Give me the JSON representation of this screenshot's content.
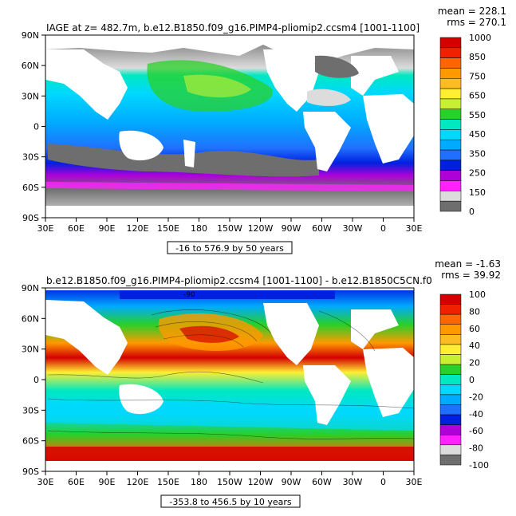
{
  "chart_data": [
    {
      "type": "heatmap",
      "title": "IAGE at z= 482.7m, b.e12.B1850.f09_g16.PIMP4-pliomip2.ccsm4 [1001-1100]",
      "stats": [
        "mean = 228.1",
        "rms = 270.1"
      ],
      "range_label": "-16 to 576.9 by 50 years",
      "x_ticks": [
        "30E",
        "60E",
        "90E",
        "120E",
        "150E",
        "180",
        "150W",
        "120W",
        "90W",
        "60W",
        "30W",
        "0",
        "30E"
      ],
      "y_ticks": [
        "90N",
        "60N",
        "30N",
        "0",
        "30S",
        "60S",
        "90S"
      ],
      "colorbar_labels": [
        "1000",
        "850",
        "750",
        "650",
        "550",
        "450",
        "350",
        "250",
        "150",
        "0"
      ],
      "colorbar_colors": [
        "#d40000",
        "#f02000",
        "#ff6600",
        "#ff9900",
        "#ffbb22",
        "#ffee33",
        "#c8f032",
        "#28d028",
        "#00e8c0",
        "#00d8ff",
        "#00aaff",
        "#2070ff",
        "#0020e0",
        "#b000d8",
        "#ff22ff",
        "#dcdcdc",
        "#6e6e6e"
      ]
    },
    {
      "type": "heatmap",
      "title": "b.e12.B1850.f09_g16.PIMP4-pliomip2.ccsm4 [1001-1100] - b.e12.B1850C5CN.f0",
      "stats": [
        "mean = -1.63",
        "rms = 39.92"
      ],
      "range_label": "-353.8 to 456.5 by 10 years",
      "contour_label": "-90",
      "x_ticks": [
        "30E",
        "60E",
        "90E",
        "120E",
        "150E",
        "180",
        "150W",
        "120W",
        "90W",
        "60W",
        "30W",
        "0",
        "30E"
      ],
      "y_ticks": [
        "90N",
        "60N",
        "30N",
        "0",
        "30S",
        "60S",
        "90S"
      ],
      "colorbar_labels": [
        "100",
        "80",
        "60",
        "40",
        "20",
        "0",
        "-20",
        "-40",
        "-60",
        "-80",
        "-100"
      ],
      "colorbar_colors": [
        "#d40000",
        "#f02000",
        "#ff6600",
        "#ff9900",
        "#ffbb22",
        "#ffee33",
        "#c8f032",
        "#28d028",
        "#00e8c0",
        "#00d8ff",
        "#00aaff",
        "#2070ff",
        "#0020e0",
        "#b000d8",
        "#ff22ff",
        "#dcdcdc",
        "#6e6e6e"
      ]
    }
  ]
}
